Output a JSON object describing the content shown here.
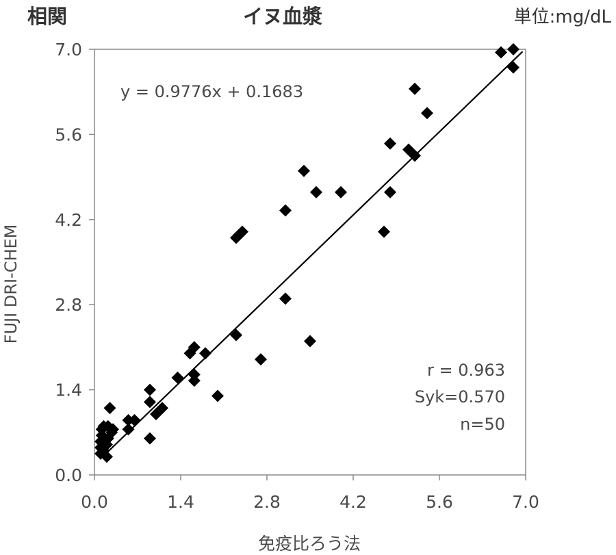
{
  "header": {
    "left_title": "相関",
    "center_title": "イヌ血漿",
    "unit": "単位:mg/dL"
  },
  "chart_data": {
    "type": "scatter",
    "xlabel": "免疫比ろう法",
    "ylabel": "FUJI DRI-CHEM",
    "xlim": [
      0.0,
      7.0
    ],
    "ylim": [
      0.0,
      7.0
    ],
    "xticks": [
      "0.0",
      "1.4",
      "2.8",
      "4.2",
      "5.6",
      "7.0"
    ],
    "yticks": [
      "0.0",
      "1.4",
      "2.8",
      "4.2",
      "5.6",
      "7.0"
    ],
    "grid": false,
    "marker": "diamond",
    "marker_color": "#000000",
    "regression": {
      "equation": "y = 0.9776x + 0.1683",
      "slope": 0.9776,
      "intercept": 0.1683
    },
    "stats": [
      "r = 0.963",
      "Syk=0.570",
      "n=50"
    ],
    "points": [
      [
        0.1,
        0.35
      ],
      [
        0.1,
        0.45
      ],
      [
        0.1,
        0.55
      ],
      [
        0.12,
        0.65
      ],
      [
        0.12,
        0.75
      ],
      [
        0.15,
        0.8
      ],
      [
        0.2,
        0.3
      ],
      [
        0.2,
        0.5
      ],
      [
        0.22,
        0.6
      ],
      [
        0.22,
        0.8
      ],
      [
        0.25,
        1.1
      ],
      [
        0.28,
        0.7
      ],
      [
        0.3,
        0.75
      ],
      [
        0.55,
        0.75
      ],
      [
        0.55,
        0.9
      ],
      [
        0.65,
        0.9
      ],
      [
        0.9,
        0.6
      ],
      [
        0.9,
        1.2
      ],
      [
        0.9,
        1.4
      ],
      [
        1.0,
        1.0
      ],
      [
        1.1,
        1.1
      ],
      [
        1.35,
        1.6
      ],
      [
        1.55,
        2.0
      ],
      [
        1.62,
        2.1
      ],
      [
        1.62,
        1.55
      ],
      [
        1.62,
        1.65
      ],
      [
        1.8,
        2.0
      ],
      [
        2.0,
        1.3
      ],
      [
        2.3,
        2.3
      ],
      [
        2.3,
        3.9
      ],
      [
        2.35,
        3.95
      ],
      [
        2.4,
        4.0
      ],
      [
        2.7,
        1.9
      ],
      [
        3.1,
        2.9
      ],
      [
        3.1,
        4.35
      ],
      [
        3.4,
        5.0
      ],
      [
        3.5,
        2.2
      ],
      [
        3.6,
        4.65
      ],
      [
        4.0,
        4.65
      ],
      [
        4.7,
        4.0
      ],
      [
        4.8,
        4.65
      ],
      [
        4.8,
        5.45
      ],
      [
        5.1,
        5.35
      ],
      [
        5.2,
        5.25
      ],
      [
        5.2,
        6.35
      ],
      [
        5.4,
        5.95
      ],
      [
        6.6,
        6.95
      ],
      [
        6.8,
        7.0
      ],
      [
        6.8,
        6.7
      ],
      [
        0.15,
        0.4
      ]
    ]
  }
}
